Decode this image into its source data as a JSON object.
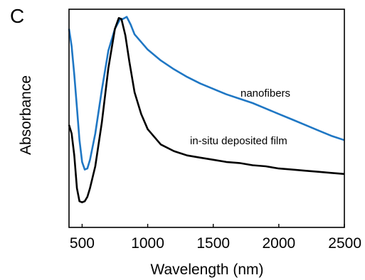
{
  "panel_label": "C",
  "chart_data": {
    "type": "line",
    "title": "",
    "xlabel": "Wavelength (nm)",
    "ylabel": "Absorbance",
    "xlim": [
      400,
      2500
    ],
    "ylim": [
      0,
      1
    ],
    "x_ticks": [
      500,
      1000,
      1500,
      2000,
      2500
    ],
    "x_tick_labels": [
      "500",
      "1000",
      "1500",
      "2000",
      "2500"
    ],
    "y_ticks_labeled": false,
    "grid": false,
    "legend": "none (series labeled directly on plot)",
    "series": [
      {
        "name": "nanofibers",
        "color": "#1f77c4",
        "x": [
          400,
          420,
          440,
          460,
          480,
          500,
          520,
          540,
          560,
          600,
          650,
          700,
          750,
          790,
          810,
          840,
          870,
          900,
          1000,
          1100,
          1200,
          1300,
          1400,
          1500,
          1600,
          1700,
          1800,
          1900,
          2000,
          2100,
          2200,
          2300,
          2400,
          2500
        ],
        "y": [
          0.91,
          0.83,
          0.7,
          0.55,
          0.4,
          0.3,
          0.265,
          0.27,
          0.31,
          0.43,
          0.63,
          0.81,
          0.91,
          0.955,
          0.955,
          0.965,
          0.93,
          0.885,
          0.815,
          0.765,
          0.725,
          0.69,
          0.66,
          0.635,
          0.61,
          0.59,
          0.57,
          0.545,
          0.52,
          0.495,
          0.47,
          0.445,
          0.42,
          0.4
        ]
      },
      {
        "name": "in-situ deposited film",
        "color": "#000000",
        "x": [
          400,
          420,
          440,
          460,
          480,
          500,
          520,
          540,
          560,
          600,
          650,
          700,
          750,
          780,
          800,
          830,
          860,
          900,
          950,
          1000,
          1100,
          1200,
          1300,
          1400,
          1500,
          1600,
          1700,
          1800,
          1900,
          2000,
          2100,
          2200,
          2300,
          2400,
          2500
        ],
        "y": [
          0.47,
          0.43,
          0.33,
          0.18,
          0.12,
          0.115,
          0.12,
          0.14,
          0.18,
          0.28,
          0.48,
          0.73,
          0.91,
          0.96,
          0.955,
          0.88,
          0.76,
          0.62,
          0.52,
          0.45,
          0.38,
          0.35,
          0.33,
          0.32,
          0.31,
          0.3,
          0.295,
          0.285,
          0.28,
          0.27,
          0.265,
          0.26,
          0.255,
          0.25,
          0.245
        ]
      }
    ]
  }
}
